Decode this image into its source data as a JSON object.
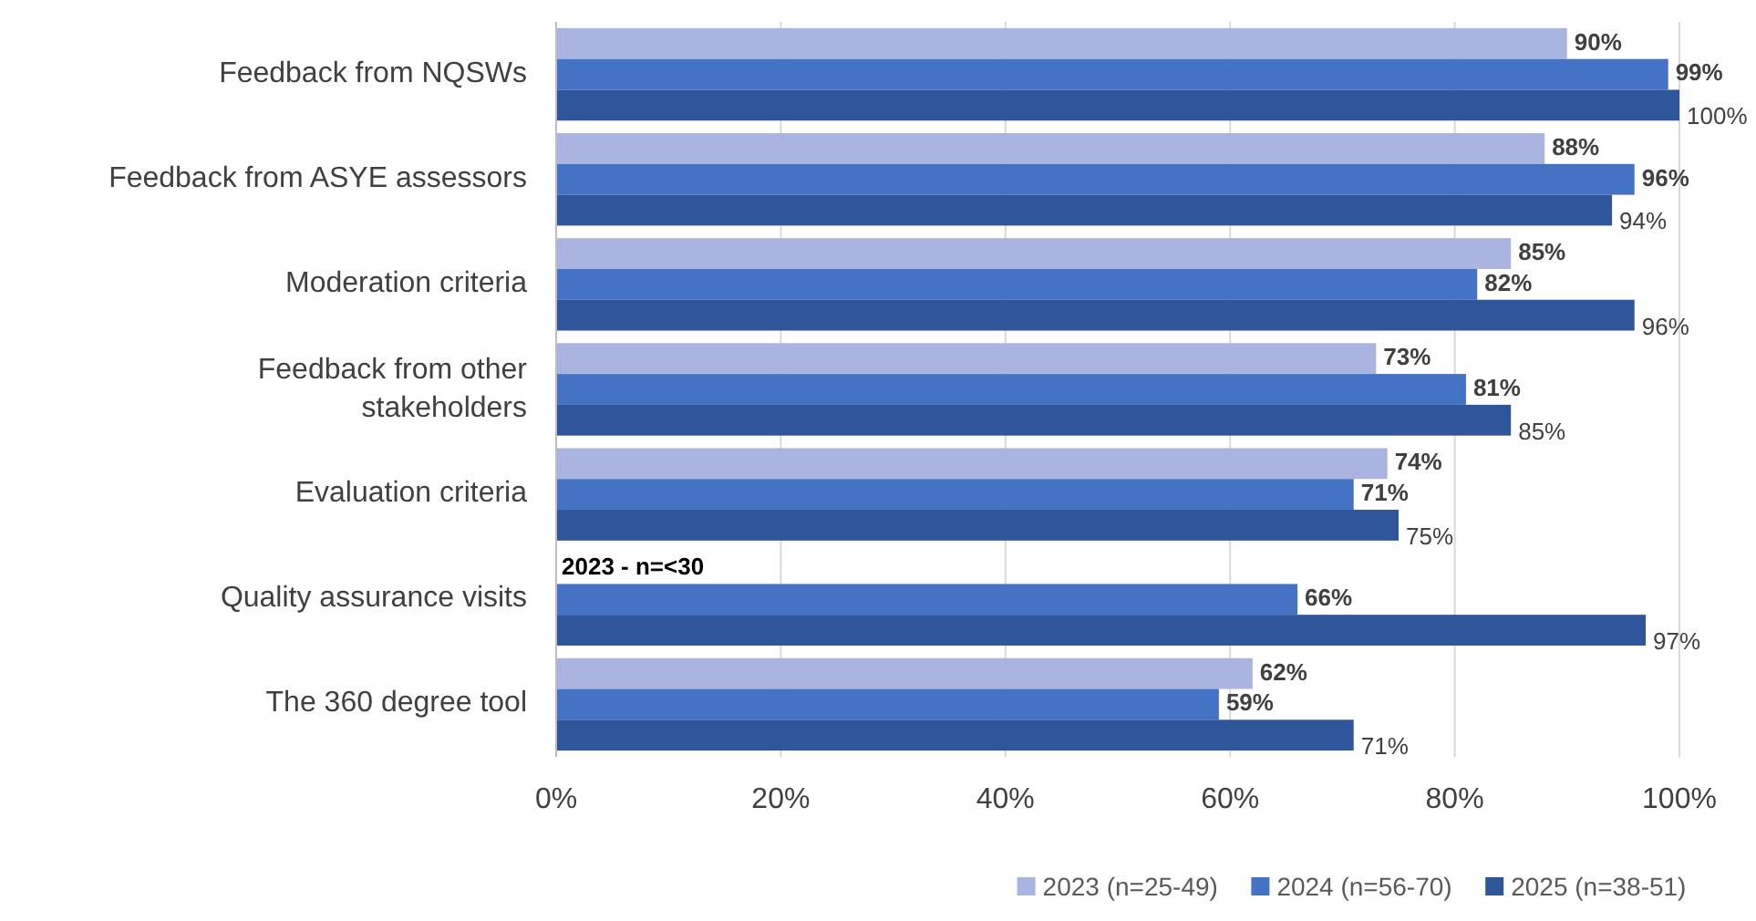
{
  "chart_data": {
    "type": "bar",
    "orientation": "horizontal",
    "categories": [
      "Feedback from NQSWs",
      "Feedback from ASYE assessors",
      "Moderation criteria",
      "Feedback from other stakeholders",
      "Evaluation criteria",
      "Quality assurance visits",
      "The 360 degree tool"
    ],
    "series": [
      {
        "name": "2023 (n=25-49)",
        "color": "#a9b5e0",
        "values": [
          90,
          88,
          85,
          73,
          74,
          null,
          62
        ],
        "value_labels": [
          "90%",
          "88%",
          "85%",
          "73%",
          "74%",
          null,
          "62%"
        ]
      },
      {
        "name": "2024 (n=56-70)",
        "color": "#4472c4",
        "values": [
          99,
          96,
          82,
          81,
          71,
          66,
          59
        ],
        "value_labels": [
          "99%",
          "96%",
          "82%",
          "81%",
          "71%",
          "66%",
          "59%"
        ]
      },
      {
        "name": "2025 (n=38-51)",
        "color": "#2f559a",
        "values": [
          100,
          94,
          96,
          85,
          75,
          97,
          71
        ],
        "value_labels": [
          "100%",
          "94%",
          "96%",
          "85%",
          "75%",
          "97%",
          "71%"
        ]
      }
    ],
    "xlim": [
      0,
      100
    ],
    "xticks": [
      {
        "value": 0,
        "label": "0%"
      },
      {
        "value": 20,
        "label": "20%"
      },
      {
        "value": 40,
        "label": "40%"
      },
      {
        "value": 60,
        "label": "60%"
      },
      {
        "value": 80,
        "label": "80%"
      },
      {
        "value": 100,
        "label": "100%"
      }
    ],
    "grid": "x",
    "legend": "bottom right",
    "annotations": [
      "2023 - n=<30"
    ]
  }
}
